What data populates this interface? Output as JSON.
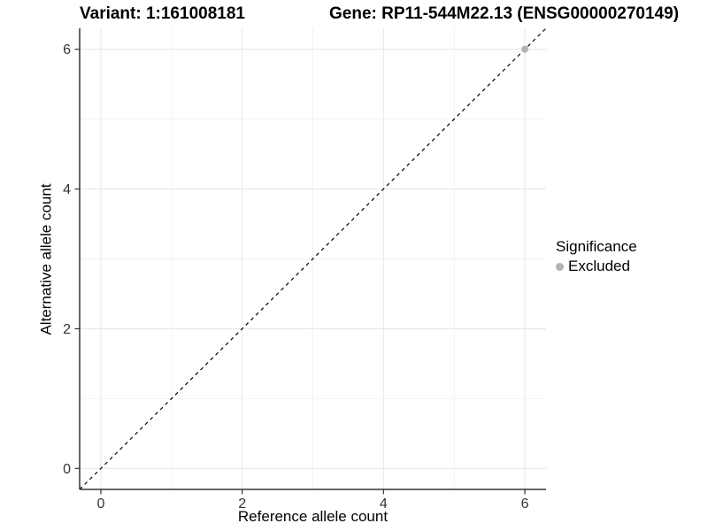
{
  "header": {
    "variant_title": "Variant: 1:161008181",
    "gene_title": "Gene: RP11-544M22.13 (ENSG00000270149)"
  },
  "legend": {
    "title": "Significance",
    "items": [
      {
        "label": "Excluded",
        "color": "#b3b3b3"
      }
    ]
  },
  "chart_data": {
    "type": "scatter",
    "title": "Variant: 1:161008181    Gene: RP11-544M22.13 (ENSG00000270149)",
    "xlabel": "Reference allele count",
    "ylabel": "Alternative allele count",
    "xlim": [
      -0.3,
      6.3
    ],
    "ylim": [
      -0.3,
      6.3
    ],
    "xticks": [
      0,
      2,
      4,
      6
    ],
    "yticks": [
      0,
      2,
      4,
      6
    ],
    "xminor": [
      1,
      3,
      5
    ],
    "yminor": [
      1,
      3,
      5
    ],
    "grid": true,
    "legend_position": "right",
    "series": [
      {
        "name": "Excluded",
        "color": "#b3b3b3",
        "points": [
          [
            6,
            6
          ]
        ]
      }
    ],
    "reference_line": {
      "type": "identity y=x",
      "from": [
        -0.3,
        -0.3
      ],
      "to": [
        6.3,
        6.3
      ],
      "style": "dashed",
      "color": "#000000"
    },
    "colors": {
      "major_grid": "#e6e6e6",
      "minor_grid": "#f2f2f2",
      "axis_line": "#333333",
      "tick_label": "#333333"
    }
  }
}
